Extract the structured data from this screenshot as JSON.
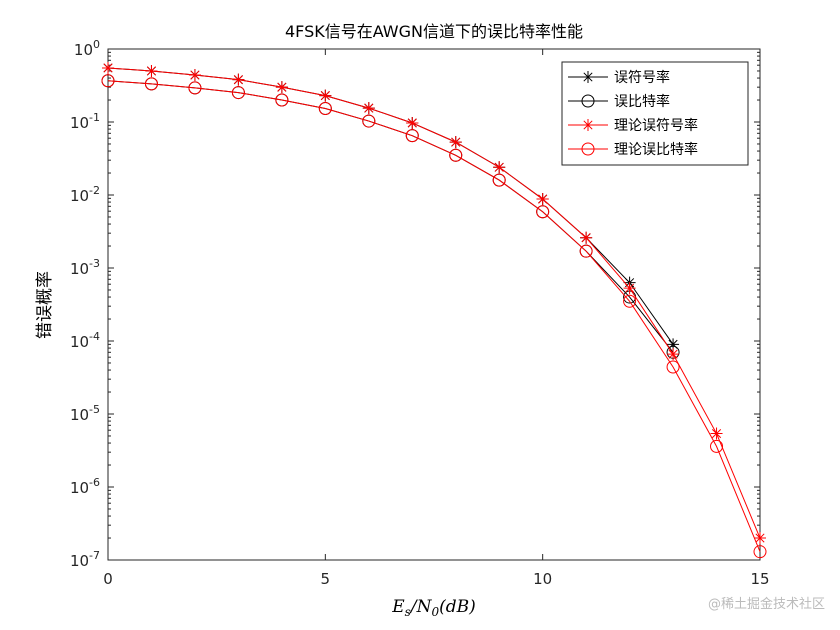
{
  "chart_data": {
    "type": "line",
    "title": "4FSK信号在AWGN信道下的误比特率性能",
    "xlabel": "E_s/N_0(dB)",
    "ylabel": "错误概率",
    "xlim": [
      0,
      15
    ],
    "ylim": [
      1e-07,
      1
    ],
    "yscale": "log",
    "xticks": [
      0,
      5,
      10,
      15
    ],
    "yticks": [
      0,
      -1,
      -2,
      -3,
      -4,
      -5,
      -6,
      -7
    ],
    "grid": false,
    "legend_position": "top-right",
    "series": [
      {
        "name": "误符号率",
        "color": "#000000",
        "marker": "star",
        "x": [
          0,
          1,
          2,
          3,
          4,
          5,
          6,
          7,
          8,
          9,
          10,
          11,
          12,
          13
        ],
        "values": [
          0.55,
          0.5,
          0.44,
          0.38,
          0.3,
          0.23,
          0.155,
          0.097,
          0.053,
          0.024,
          0.0088,
          0.0026,
          0.00063,
          9e-05
        ]
      },
      {
        "name": "误比特率",
        "color": "#000000",
        "marker": "circle",
        "x": [
          0,
          1,
          2,
          3,
          4,
          5,
          6,
          7,
          8,
          9,
          10,
          11,
          12,
          13
        ],
        "values": [
          0.367,
          0.333,
          0.293,
          0.253,
          0.2,
          0.153,
          0.103,
          0.065,
          0.035,
          0.016,
          0.0059,
          0.0017,
          0.0004,
          7e-05
        ]
      },
      {
        "name": "理论误符号率",
        "color": "#ff0000",
        "marker": "star",
        "x": [
          0,
          1,
          2,
          3,
          4,
          5,
          6,
          7,
          8,
          9,
          10,
          11,
          12,
          13,
          14,
          15
        ],
        "values": [
          0.55,
          0.5,
          0.44,
          0.38,
          0.3,
          0.23,
          0.155,
          0.097,
          0.053,
          0.024,
          0.0088,
          0.0026,
          0.00053,
          6.6e-05,
          5.4e-06,
          2e-07
        ]
      },
      {
        "name": "理论误比特率",
        "color": "#ff0000",
        "marker": "circle",
        "x": [
          0,
          1,
          2,
          3,
          4,
          5,
          6,
          7,
          8,
          9,
          10,
          11,
          12,
          13,
          14,
          15
        ],
        "values": [
          0.367,
          0.333,
          0.293,
          0.253,
          0.2,
          0.153,
          0.103,
          0.065,
          0.035,
          0.016,
          0.0059,
          0.0017,
          0.00035,
          4.4e-05,
          3.6e-06,
          1.3e-07
        ]
      }
    ]
  },
  "watermark": "@稀土掘金技术社区"
}
